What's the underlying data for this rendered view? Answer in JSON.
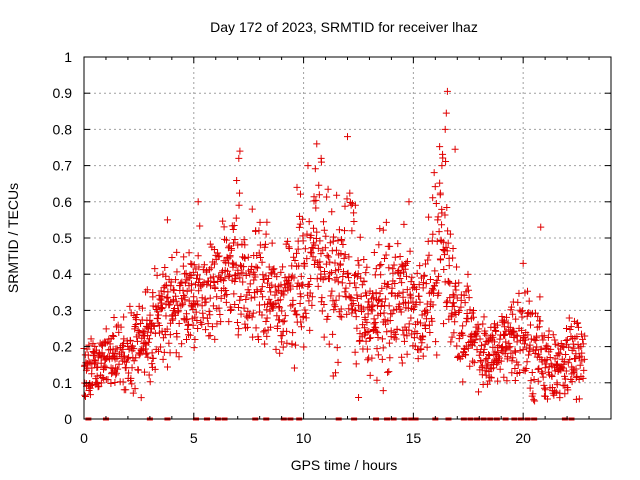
{
  "chart_data": {
    "type": "scatter",
    "title": "Day 172 of 2023, SRMTID for receiver lhaz",
    "xlabel": "GPS time / hours",
    "ylabel": "SRMTID / TECUs",
    "xlim": [
      0,
      24
    ],
    "ylim": [
      0,
      1
    ],
    "x_ticks": [
      0,
      5,
      10,
      15,
      20
    ],
    "x_tick_labels": [
      "0",
      "5",
      "10",
      "15",
      "20"
    ],
    "y_ticks": [
      0,
      0.1,
      0.2,
      0.3,
      0.4,
      0.5,
      0.6,
      0.7,
      0.8,
      0.9,
      1
    ],
    "y_tick_labels": [
      "0",
      "0.1",
      "0.2",
      "0.3",
      "0.4",
      "0.5",
      "0.6",
      "0.7",
      "0.8",
      "0.9",
      "1"
    ],
    "grid": true,
    "marker": "plus",
    "color": "#e00000",
    "trend": [
      [
        0.0,
        0.14,
        0.04
      ],
      [
        0.5,
        0.15,
        0.05
      ],
      [
        1.0,
        0.18,
        0.05
      ],
      [
        1.5,
        0.17,
        0.06
      ],
      [
        2.0,
        0.18,
        0.08
      ],
      [
        2.5,
        0.2,
        0.08
      ],
      [
        3.0,
        0.24,
        0.08
      ],
      [
        3.5,
        0.3,
        0.08
      ],
      [
        4.0,
        0.3,
        0.08
      ],
      [
        4.5,
        0.32,
        0.08
      ],
      [
        5.0,
        0.34,
        0.09
      ],
      [
        5.5,
        0.36,
        0.08
      ],
      [
        6.0,
        0.37,
        0.09
      ],
      [
        6.5,
        0.4,
        0.1
      ],
      [
        7.0,
        0.45,
        0.14
      ],
      [
        7.5,
        0.38,
        0.1
      ],
      [
        8.0,
        0.38,
        0.11
      ],
      [
        8.5,
        0.33,
        0.09
      ],
      [
        9.0,
        0.33,
        0.1
      ],
      [
        9.5,
        0.35,
        0.12
      ],
      [
        10.0,
        0.4,
        0.13
      ],
      [
        10.5,
        0.45,
        0.14
      ],
      [
        11.0,
        0.42,
        0.13
      ],
      [
        11.5,
        0.36,
        0.12
      ],
      [
        12.0,
        0.45,
        0.14
      ],
      [
        12.5,
        0.33,
        0.12
      ],
      [
        13.0,
        0.27,
        0.1
      ],
      [
        13.5,
        0.32,
        0.11
      ],
      [
        14.0,
        0.33,
        0.11
      ],
      [
        14.5,
        0.35,
        0.12
      ],
      [
        15.0,
        0.3,
        0.1
      ],
      [
        15.5,
        0.33,
        0.11
      ],
      [
        16.0,
        0.42,
        0.14
      ],
      [
        16.5,
        0.5,
        0.15
      ],
      [
        17.0,
        0.3,
        0.09
      ],
      [
        17.5,
        0.25,
        0.08
      ],
      [
        18.0,
        0.2,
        0.07
      ],
      [
        18.5,
        0.18,
        0.07
      ],
      [
        19.0,
        0.2,
        0.07
      ],
      [
        19.5,
        0.24,
        0.07
      ],
      [
        20.0,
        0.22,
        0.08
      ],
      [
        20.5,
        0.2,
        0.12
      ],
      [
        21.0,
        0.15,
        0.07
      ],
      [
        21.5,
        0.14,
        0.06
      ],
      [
        22.0,
        0.15,
        0.06
      ],
      [
        22.5,
        0.2,
        0.08
      ],
      [
        22.8,
        0.18,
        0.07
      ]
    ],
    "spikes": [
      [
        16.55,
        0.905
      ],
      [
        16.5,
        0.845
      ],
      [
        16.45,
        0.8
      ],
      [
        12.0,
        0.78
      ],
      [
        10.6,
        0.76
      ],
      [
        7.1,
        0.74
      ],
      [
        16.9,
        0.745
      ],
      [
        7.05,
        0.72
      ],
      [
        10.8,
        0.72
      ],
      [
        9.7,
        0.64
      ],
      [
        16.3,
        0.7
      ],
      [
        20.8,
        0.53
      ],
      [
        20.0,
        0.43
      ],
      [
        5.2,
        0.6
      ],
      [
        3.8,
        0.55
      ],
      [
        10.2,
        0.7
      ],
      [
        14.8,
        0.6
      ]
    ],
    "gap_markers_x": [
      0.2,
      1.0,
      3.0,
      3.8,
      5.1,
      5.6,
      6.1,
      6.4,
      7.8,
      8.3,
      9.1,
      9.4,
      9.8,
      11.6,
      12.3,
      13.3,
      13.8,
      14.1,
      14.6,
      14.9,
      15.1,
      16.0,
      16.6,
      17.3,
      17.6,
      17.9,
      18.2,
      18.5,
      18.8,
      19.2,
      19.6,
      19.9,
      20.2,
      20.5,
      21.9,
      22.2
    ]
  }
}
